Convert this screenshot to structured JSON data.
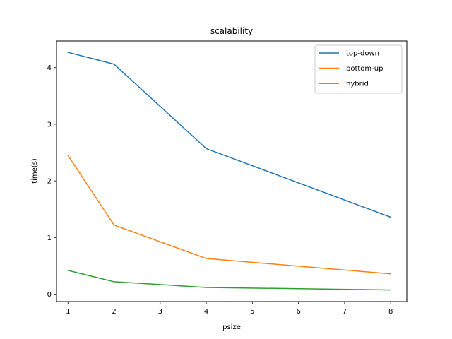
{
  "chart_data": {
    "type": "line",
    "title": "scalability",
    "xlabel": "psize",
    "ylabel": "time(s)",
    "x": [
      1,
      2,
      4,
      8
    ],
    "xticks": [
      1,
      2,
      3,
      4,
      5,
      6,
      7,
      8
    ],
    "yticks": [
      0,
      1,
      2,
      3,
      4
    ],
    "xlim": [
      0.75,
      8.35
    ],
    "ylim": [
      -0.13,
      4.47
    ],
    "grid": false,
    "legend_position": "top-right",
    "series": [
      {
        "name": "top-down",
        "color": "#1f77b4",
        "values": [
          4.27,
          4.06,
          2.57,
          1.36
        ]
      },
      {
        "name": "bottom-up",
        "color": "#ff7f0e",
        "values": [
          2.45,
          1.22,
          0.63,
          0.36
        ]
      },
      {
        "name": "hybrid",
        "color": "#2ca02c",
        "values": [
          0.42,
          0.22,
          0.12,
          0.075
        ]
      }
    ]
  }
}
